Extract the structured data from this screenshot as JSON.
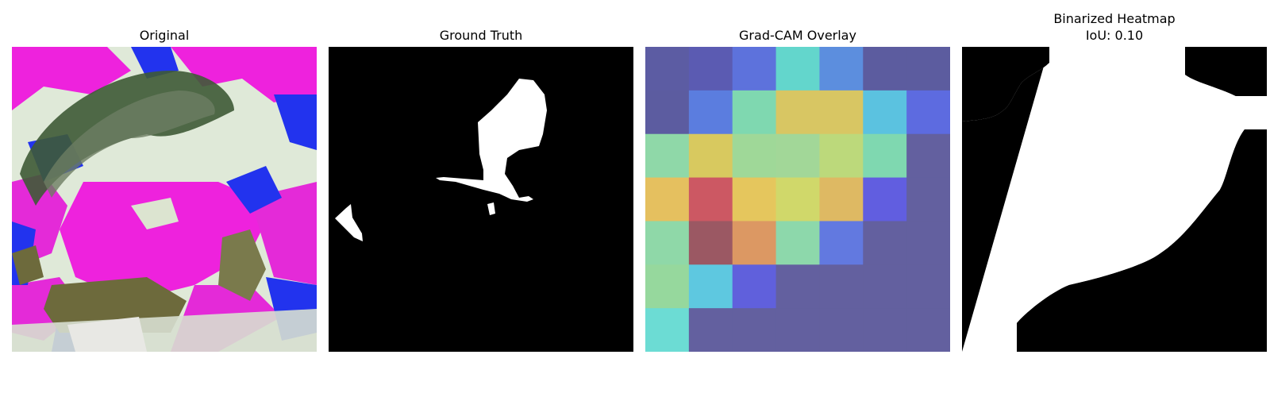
{
  "panels": [
    {
      "title": "Original"
    },
    {
      "title": "Ground Truth"
    },
    {
      "title": "Grad-CAM Overlay"
    },
    {
      "title": "Binarized Heatmap",
      "subtitle": "IoU: 0.10"
    }
  ],
  "gradcam": {
    "grid_rows": 7,
    "grid_cols": 7,
    "cells": [
      [
        "#5c5ca3",
        "#5b5bb2",
        "#5d72dc",
        "#63d6cc",
        "#5c8ede",
        "#5c5c9f",
        "#5c5c9f"
      ],
      [
        "#5c5ca0",
        "#5b7ddf",
        "#7fd8b0",
        "#d8c663",
        "#d8c663",
        "#5bc2e0",
        "#5d6be0"
      ],
      [
        "#8fd8a8",
        "#d8c95f",
        "#9fd898",
        "#a2d798",
        "#bcd97b",
        "#7fd8b0",
        "#63609f"
      ],
      [
        "#e5c05f",
        "#cc5863",
        "#e5c65d",
        "#d0d86a",
        "#deb963",
        "#615ee0",
        "#63609f"
      ],
      [
        "#8fd8a8",
        "#9b5863",
        "#dc9863",
        "#8dd8ab",
        "#6279e0",
        "#63609f",
        "#63609f"
      ],
      [
        "#96d89d",
        "#5ec8e0",
        "#6060dc",
        "#63609f",
        "#63609f",
        "#63609f",
        "#63609f"
      ],
      [
        "#6cdcd4",
        "#63609f",
        "#63609f",
        "#63609f",
        "#63609f",
        "#63609f",
        "#63609f"
      ]
    ]
  }
}
